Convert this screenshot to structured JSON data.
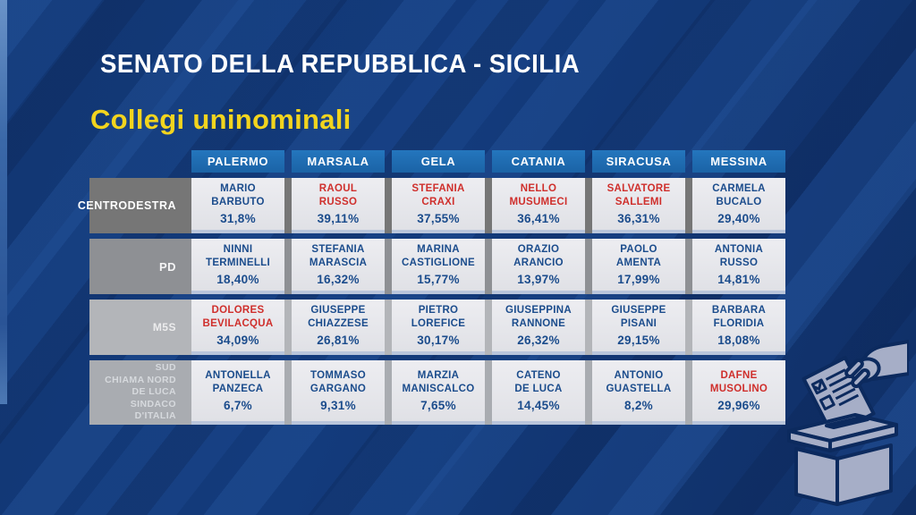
{
  "title": "SENATO DELLA REPUBBLICA - SICILIA",
  "subtitle": "Collegi uninominali",
  "colors": {
    "background_navy": "#123672",
    "stripe_light": "#2c60ac",
    "header_blue": "#1f6fb4",
    "cell_bg": "#e8e9ed",
    "cell_bottom_edge": "#b9c5db",
    "name_blue": "#1b4c8c",
    "name_red": "#cf2f2c",
    "title_white": "#ffffff",
    "subtitle_yellow": "#f2d41e",
    "ballot_icon_fill": "#a6aec7",
    "ballot_icon_stroke": "#0c2a5e"
  },
  "chart_data": {
    "type": "table",
    "title": "SENATO DELLA REPUBBLICA - SICILIA",
    "subtitle": "Collegi uninominali",
    "columns": [
      "PALERMO",
      "MARSALA",
      "GELA",
      "CATANIA",
      "SIRACUSA",
      "MESSINA"
    ],
    "rows": [
      {
        "party": "CENTRODESTRA",
        "label_lines": [
          "CENTRODESTRA"
        ],
        "label_bg": "#767676",
        "label_color": "#ffffff",
        "candidates": [
          {
            "name": "MARIO BARBUTO",
            "name_lines": [
              "MARIO",
              "BARBUTO"
            ],
            "pct": "31,8%",
            "highlighted": false
          },
          {
            "name": "RAOUL RUSSO",
            "name_lines": [
              "RAOUL",
              "RUSSO"
            ],
            "pct": "39,11%",
            "highlighted": true
          },
          {
            "name": "STEFANIA CRAXI",
            "name_lines": [
              "STEFANIA",
              "CRAXI"
            ],
            "pct": "37,55%",
            "highlighted": true
          },
          {
            "name": "NELLO MUSUMECI",
            "name_lines": [
              "NELLO",
              "MUSUMECI"
            ],
            "pct": "36,41%",
            "highlighted": true
          },
          {
            "name": "SALVATORE SALLEMI",
            "name_lines": [
              "SALVATORE",
              "SALLEMI"
            ],
            "pct": "36,31%",
            "highlighted": true
          },
          {
            "name": "CARMELA BUCALO",
            "name_lines": [
              "CARMELA",
              "BUCALO"
            ],
            "pct": "29,40%",
            "highlighted": false
          }
        ]
      },
      {
        "party": "PD",
        "label_lines": [
          "PD"
        ],
        "label_bg": "#8e9094",
        "label_color": "#f4f4f5",
        "candidates": [
          {
            "name": "NINNI TERMINELLI",
            "name_lines": [
              "NINNI",
              "TERMINELLI"
            ],
            "pct": "18,40%",
            "highlighted": false
          },
          {
            "name": "STEFANIA MARASCIA",
            "name_lines": [
              "STEFANIA",
              "MARASCIA"
            ],
            "pct": "16,32%",
            "highlighted": false
          },
          {
            "name": "MARINA CASTIGLIONE",
            "name_lines": [
              "MARINA",
              "CASTIGLIONE"
            ],
            "pct": "15,77%",
            "highlighted": false
          },
          {
            "name": "ORAZIO ARANCIO",
            "name_lines": [
              "ORAZIO",
              "ARANCIO"
            ],
            "pct": "13,97%",
            "highlighted": false
          },
          {
            "name": "PAOLO AMENTA",
            "name_lines": [
              "PAOLO",
              "AMENTA"
            ],
            "pct": "17,99%",
            "highlighted": false
          },
          {
            "name": "ANTONIA RUSSO",
            "name_lines": [
              "ANTONIA",
              "RUSSO"
            ],
            "pct": "14,81%",
            "highlighted": false
          }
        ]
      },
      {
        "party": "M5S",
        "label_lines": [
          "M5S"
        ],
        "label_bg": "#b3b5b9",
        "label_color": "#ececed",
        "candidates": [
          {
            "name": "DOLORES BEVILACQUA",
            "name_lines": [
              "DOLORES",
              "BEVILACQUA"
            ],
            "pct": "34,09%",
            "highlighted": true
          },
          {
            "name": "GIUSEPPE CHIAZZESE",
            "name_lines": [
              "GIUSEPPE",
              "CHIAZZESE"
            ],
            "pct": "26,81%",
            "highlighted": false
          },
          {
            "name": "PIETRO LOREFICE",
            "name_lines": [
              "PIETRO",
              "LOREFICE"
            ],
            "pct": "30,17%",
            "highlighted": false
          },
          {
            "name": "GIUSEPPINA RANNONE",
            "name_lines": [
              "GIUSEPPINA",
              "RANNONE"
            ],
            "pct": "26,32%",
            "highlighted": false
          },
          {
            "name": "GIUSEPPE PISANI",
            "name_lines": [
              "GIUSEPPE",
              "PISANI"
            ],
            "pct": "29,15%",
            "highlighted": false
          },
          {
            "name": "BARBARA FLORIDIA",
            "name_lines": [
              "BARBARA",
              "FLORIDIA"
            ],
            "pct": "18,08%",
            "highlighted": false
          }
        ]
      },
      {
        "party": "SUD CHIAMA NORD DE LUCA SINDACO D'ITALIA",
        "label_lines": [
          "SUD",
          "CHIAMA NORD",
          "DE LUCA SINDACO",
          "D'ITALIA"
        ],
        "label_bg": "#a9acb1",
        "label_color": "#d6d9dd",
        "candidates": [
          {
            "name": "ANTONELLA PANZECA",
            "name_lines": [
              "ANTONELLA",
              "PANZECA"
            ],
            "pct": "6,7%",
            "highlighted": false
          },
          {
            "name": "TOMMASO GARGANO",
            "name_lines": [
              "TOMMASO",
              "GARGANO"
            ],
            "pct": "9,31%",
            "highlighted": false
          },
          {
            "name": "MARZIA MANISCALCO",
            "name_lines": [
              "MARZIA",
              "MANISCALCO"
            ],
            "pct": "7,65%",
            "highlighted": false
          },
          {
            "name": "CATENO DE LUCA",
            "name_lines": [
              "CATENO",
              "DE LUCA"
            ],
            "pct": "14,45%",
            "highlighted": false
          },
          {
            "name": "ANTONIO GUASTELLA",
            "name_lines": [
              "ANTONIO",
              "GUASTELLA"
            ],
            "pct": "8,2%",
            "highlighted": false
          },
          {
            "name": "DAFNE MUSOLINO",
            "name_lines": [
              "DAFNE",
              "MUSOLINO"
            ],
            "pct": "29,96%",
            "highlighted": true
          }
        ]
      }
    ]
  }
}
